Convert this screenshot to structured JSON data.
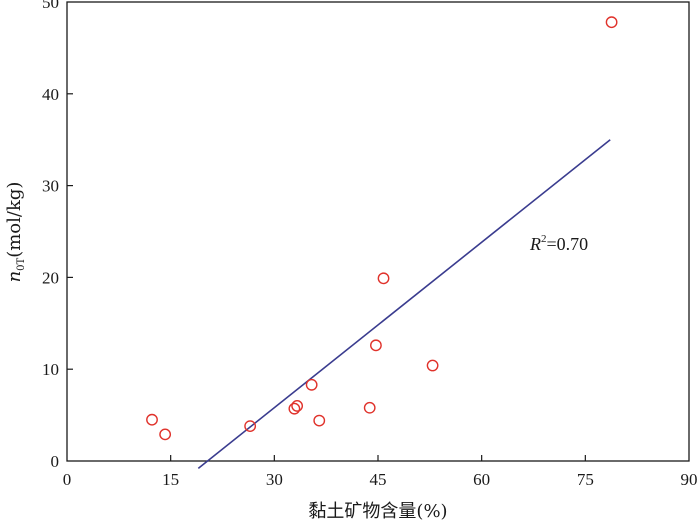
{
  "chart_data": {
    "type": "scatter",
    "xlabel": "黏土矿物含量(%)",
    "ylabel_main": "n",
    "ylabel_sub": "0T",
    "ylabel_unit": "(mol/kg)",
    "xlim": [
      0,
      90
    ],
    "ylim": [
      0,
      50
    ],
    "xticks": [
      "0",
      "15",
      "30",
      "45",
      "60",
      "75",
      "90"
    ],
    "yticks": [
      "0",
      "10",
      "20",
      "30",
      "40",
      "50"
    ],
    "grid": false,
    "points": [
      {
        "x": 12.3,
        "y": 4.5
      },
      {
        "x": 14.2,
        "y": 2.9
      },
      {
        "x": 26.5,
        "y": 3.8
      },
      {
        "x": 32.9,
        "y": 5.7
      },
      {
        "x": 33.3,
        "y": 6.0
      },
      {
        "x": 35.4,
        "y": 8.3
      },
      {
        "x": 36.5,
        "y": 4.4
      },
      {
        "x": 43.8,
        "y": 5.8
      },
      {
        "x": 44.7,
        "y": 12.6
      },
      {
        "x": 45.8,
        "y": 19.9
      },
      {
        "x": 52.9,
        "y": 10.4
      },
      {
        "x": 78.8,
        "y": 47.8
      }
    ],
    "fit_line": {
      "x": [
        19.0,
        78.6
      ],
      "y": [
        -0.8,
        35.0
      ]
    },
    "annotation": {
      "r_label": "R",
      "r_sup": "2",
      "r_value": "=0.70"
    },
    "colors": {
      "point": "#e0322b",
      "line": "#3a3c8f",
      "axis": "#1a1a1a"
    }
  }
}
